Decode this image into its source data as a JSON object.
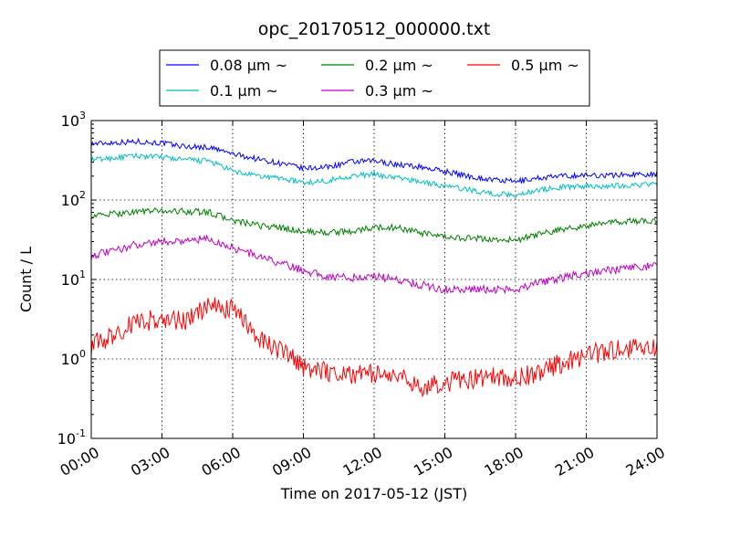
{
  "chart_data": {
    "type": "line",
    "title": "opc_20170512_000000.txt",
    "xlabel": "Time on 2017-05-12 (JST)",
    "ylabel": "Count / L",
    "yscale": "log",
    "ylim": [
      0.1,
      1000
    ],
    "xlim": [
      "00:00",
      "24:00"
    ],
    "grid": true,
    "legend_position": "top-center",
    "x_ticks": [
      "00:00",
      "03:00",
      "06:00",
      "09:00",
      "12:00",
      "15:00",
      "18:00",
      "21:00",
      "24:00"
    ],
    "y_ticks": [
      {
        "value": 0.1,
        "base": "10",
        "exp": "-1"
      },
      {
        "value": 1,
        "base": "10",
        "exp": "0"
      },
      {
        "value": 10,
        "base": "10",
        "exp": "1"
      },
      {
        "value": 100,
        "base": "10",
        "exp": "2"
      },
      {
        "value": 1000,
        "base": "10",
        "exp": "3"
      }
    ],
    "x": [
      "00:00",
      "01:00",
      "02:00",
      "03:00",
      "04:00",
      "05:00",
      "06:00",
      "07:00",
      "08:00",
      "09:00",
      "10:00",
      "11:00",
      "12:00",
      "13:00",
      "14:00",
      "15:00",
      "16:00",
      "17:00",
      "18:00",
      "19:00",
      "20:00",
      "21:00",
      "22:00",
      "23:00",
      "24:00"
    ],
    "series": [
      {
        "name": "0.08 μm ~",
        "color": "#0000ff",
        "values": [
          510,
          530,
          545,
          520,
          470,
          460,
          380,
          330,
          290,
          250,
          260,
          300,
          310,
          280,
          260,
          230,
          200,
          180,
          170,
          190,
          200,
          205,
          205,
          210,
          215
        ]
      },
      {
        "name": "0.1 μm ~",
        "color": "#00bfbf",
        "values": [
          320,
          340,
          360,
          345,
          320,
          310,
          230,
          200,
          190,
          165,
          175,
          200,
          210,
          190,
          170,
          150,
          135,
          120,
          115,
          135,
          145,
          150,
          150,
          155,
          160
        ]
      },
      {
        "name": "0.2 μm ~",
        "color": "#008000",
        "values": [
          63,
          67,
          72,
          73,
          72,
          70,
          55,
          48,
          45,
          40,
          39,
          40,
          45,
          45,
          38,
          34,
          33,
          32,
          31,
          37,
          43,
          47,
          52,
          54,
          55
        ]
      },
      {
        "name": "0.3 μm ~",
        "color": "#bf00bf",
        "values": [
          20,
          23,
          28,
          30,
          31,
          32,
          25,
          20,
          16,
          13,
          11,
          10.5,
          11,
          10,
          8.5,
          7.5,
          7.5,
          7.5,
          7.5,
          9,
          10.5,
          12,
          13,
          14,
          15
        ]
      },
      {
        "name": "0.5 μm ~",
        "color": "#ff0000",
        "values": [
          1.5,
          2,
          3,
          3.1,
          3,
          4.5,
          4.2,
          2.0,
          1.3,
          0.8,
          0.7,
          0.65,
          0.65,
          0.6,
          0.45,
          0.5,
          0.55,
          0.6,
          0.55,
          0.7,
          0.9,
          1.1,
          1.3,
          1.4,
          1.4
        ]
      }
    ]
  }
}
